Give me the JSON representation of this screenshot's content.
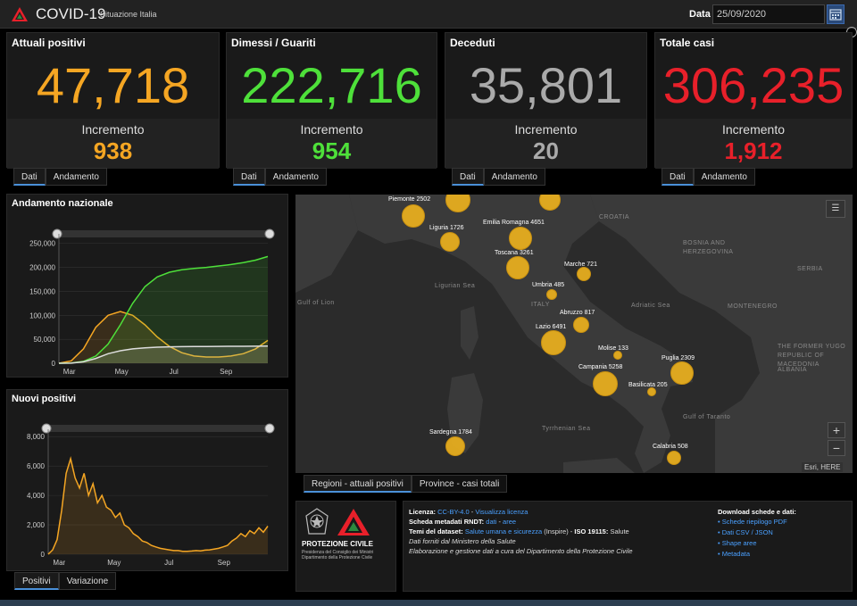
{
  "header": {
    "title": "COVID-19",
    "subtitle": "Situazione Italia",
    "date_label": "Data",
    "date_value": "25/09/2020"
  },
  "cards": [
    {
      "title": "Attuali positivi",
      "value": "47,718",
      "inc_label": "Incremento",
      "inc_value": "938",
      "color": "#f5a623",
      "tabs": [
        "Dati",
        "Andamento"
      ]
    },
    {
      "title": "Dimessi / Guariti",
      "value": "222,716",
      "inc_label": "Incremento",
      "inc_value": "954",
      "color": "#4ee03a",
      "tabs": [
        "Dati",
        "Andamento"
      ]
    },
    {
      "title": "Deceduti",
      "value": "35,801",
      "inc_label": "Incremento",
      "inc_value": "20",
      "color": "#aaaaaa",
      "tabs": [
        "Dati",
        "Andamento"
      ]
    },
    {
      "title": "Totale casi",
      "value": "306,235",
      "inc_label": "Incremento",
      "inc_value": "1,912",
      "color": "#e8202a",
      "tabs": [
        "Dati",
        "Andamento"
      ]
    }
  ],
  "andamento": {
    "title": "Andamento nazionale",
    "chart_data": {
      "type": "area",
      "y_ticks": [
        "0",
        "50,000",
        "100,000",
        "150,000",
        "200,000",
        "250,000"
      ],
      "ylim": [
        0,
        270000
      ],
      "x_ticks": [
        "Mar",
        "May",
        "Jul",
        "Sep"
      ],
      "series": [
        {
          "color": "#f5a623",
          "values": [
            0,
            5000,
            30000,
            75000,
            100000,
            108000,
            100000,
            80000,
            55000,
            35000,
            22000,
            15000,
            13000,
            13000,
            15000,
            20000,
            30000,
            47718
          ]
        },
        {
          "color": "#4ee03a",
          "values": [
            0,
            500,
            4000,
            15000,
            40000,
            80000,
            125000,
            160000,
            180000,
            190000,
            195000,
            198000,
            200000,
            203000,
            206000,
            210000,
            215000,
            222716
          ]
        },
        {
          "color": "#dddddd",
          "values": [
            0,
            200,
            3000,
            10000,
            20000,
            26000,
            30000,
            32000,
            33500,
            34300,
            34700,
            35000,
            35100,
            35200,
            35300,
            35400,
            35600,
            35801
          ]
        }
      ]
    }
  },
  "nuovi": {
    "title": "Nuovi positivi",
    "chart_data": {
      "type": "area",
      "y_ticks": [
        "0",
        "2,000",
        "4,000",
        "6,000",
        "8,000"
      ],
      "ylim": [
        0,
        8500
      ],
      "x_ticks": [
        "Mar",
        "May",
        "Jul",
        "Sep"
      ],
      "series": [
        {
          "color": "#f5a623",
          "values": [
            0,
            300,
            1000,
            3000,
            5500,
            6500,
            5200,
            4500,
            5500,
            4000,
            4800,
            3500,
            4000,
            3200,
            3000,
            2500,
            2800,
            2000,
            1800,
            1400,
            1200,
            900,
            800,
            600,
            500,
            400,
            350,
            300,
            250,
            250,
            200,
            200,
            220,
            250,
            230,
            280,
            300,
            350,
            400,
            500,
            600,
            900,
            1100,
            1400,
            1200,
            1600,
            1400,
            1800,
            1500,
            1912
          ]
        }
      ]
    }
  },
  "left_tabs": [
    "Positivi",
    "Variazione"
  ],
  "map": {
    "tabs": [
      "Regioni - attuali positivi",
      "Province - casi totali"
    ],
    "attribution": "Esri, HERE",
    "geo_labels": [
      {
        "text": "CROATIA"
      },
      {
        "text": "BOSNIA AND HERZEGOVINA"
      },
      {
        "text": "SERBIA"
      },
      {
        "text": "MONTENEGRO"
      },
      {
        "text": "THE FORMER YUGO REPUBLIC OF MACEDONIA"
      },
      {
        "text": "ALBANIA"
      },
      {
        "text": "Ligurian Sea"
      },
      {
        "text": "Gulf of Lion"
      },
      {
        "text": "Adriatic Sea"
      },
      {
        "text": "ITALY"
      },
      {
        "text": "Tyrrhenian Sea"
      },
      {
        "text": "Gulf of Taranto"
      }
    ],
    "regions": [
      {
        "label": "Piemonte 2502"
      },
      {
        "label": "Liguria 1726"
      },
      {
        "label": "Emilia Romagna 4651"
      },
      {
        "label": "Toscana 3261"
      },
      {
        "label": "Marche 721"
      },
      {
        "label": "Umbria 485"
      },
      {
        "label": "Abruzzo 817"
      },
      {
        "label": "Lazio 6491"
      },
      {
        "label": "Molise 133"
      },
      {
        "label": "Puglia 2309"
      },
      {
        "label": "Campania 5258"
      },
      {
        "label": "Basilicata 205"
      },
      {
        "label": "Sardegna 1784"
      },
      {
        "label": "Calabria 508"
      }
    ]
  },
  "footer": {
    "org_name": "PROTEZIONE CIVILE",
    "org_sub": "Presidenza del Consiglio dei Ministri Dipartimento della Protezione Civile",
    "licenza_label": "Licenza:",
    "licenza_link": "CC-BY-4.0",
    "licenza_link2": "Visualizza licenza",
    "metadati_label": "Scheda metadati RNDT:",
    "metadati_link1": "dati",
    "metadati_link2": "aree",
    "temi_label": "Temi del dataset:",
    "temi_link": "Salute umana e sicurezza",
    "temi_rest": "(Inspire) -",
    "iso_label": "ISO 19115:",
    "iso_value": "Salute",
    "line4": "Dati forniti dal Ministero della Salute",
    "line5": "Elaborazione e gestione dati a cura del Dipartimento della Protezione Civile",
    "download_title": "Download schede e dati:",
    "downloads": [
      "Schede riepilogo PDF",
      "Dati CSV / JSON",
      "Shape aree",
      "Metadata"
    ]
  }
}
